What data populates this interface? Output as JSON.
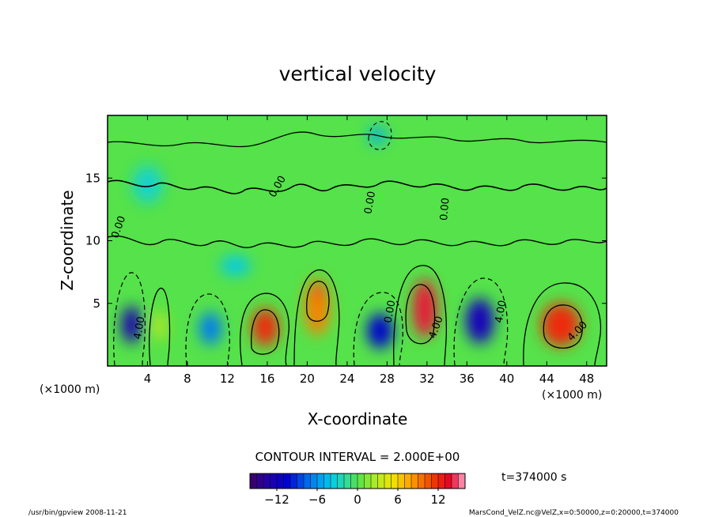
{
  "chart_data": {
    "type": "heatmap",
    "title": "vertical velocity",
    "xlabel": "X-coordinate",
    "ylabel": "Z-coordinate",
    "x_unit": "(×1000 m)",
    "x_ticks": [
      4,
      8,
      12,
      16,
      20,
      24,
      28,
      32,
      36,
      40,
      44,
      48
    ],
    "y_ticks": [
      5,
      10,
      15
    ],
    "xlim": [
      0,
      50
    ],
    "ylim": [
      0,
      20
    ],
    "contour_interval_text": "CONTOUR INTERVAL = 2.000E+00",
    "time_label": "t=374000 s",
    "colorbar": {
      "range": [
        -16,
        16
      ],
      "ticks": [
        -12,
        -6,
        0,
        6,
        12
      ],
      "tick_labels": [
        "−12",
        "−6",
        "0",
        "6",
        "12"
      ]
    },
    "contour_labels": [
      {
        "text": "0.00",
        "x": 17.3,
        "z": 14.2,
        "rotate": -60
      },
      {
        "text": "0.00",
        "x": 1.4,
        "z": 11.0,
        "rotate": -70
      },
      {
        "text": "0.00",
        "x": 26.6,
        "z": 13.0,
        "rotate": -80
      },
      {
        "text": "0.00",
        "x": 34.1,
        "z": 12.5,
        "rotate": -85
      },
      {
        "text": "0.00",
        "x": 28.6,
        "z": 4.3,
        "rotate": -80
      },
      {
        "text": "4.00",
        "x": 3.5,
        "z": 3.0,
        "rotate": -80
      },
      {
        "text": "4.00",
        "x": 33.2,
        "z": 3.0,
        "rotate": -70
      },
      {
        "text": "4.00",
        "x": 39.7,
        "z": 4.3,
        "rotate": -80
      },
      {
        "text": "4.00",
        "x": 47.3,
        "z": 2.6,
        "rotate": -45
      }
    ],
    "cells": [
      {
        "x": 2.6,
        "z": 3.0,
        "w": 0.9,
        "hz": 2.0,
        "value": -16
      },
      {
        "x": 2.4,
        "z": 3.3,
        "w": 2.0,
        "hz": 3.0,
        "value": -13
      },
      {
        "x": 5.2,
        "z": 3.2,
        "w": 1.1,
        "hz": 2.4,
        "value": 4
      },
      {
        "x": 10.3,
        "z": 3.0,
        "w": 2.2,
        "hz": 2.6,
        "value": -7
      },
      {
        "x": 15.8,
        "z": 3.1,
        "w": 2.7,
        "hz": 3.0,
        "value": 12
      },
      {
        "x": 21.0,
        "z": 4.7,
        "w": 2.5,
        "hz": 4.5,
        "value": 9
      },
      {
        "x": 21.1,
        "z": 6.0,
        "w": 0.9,
        "hz": 1.2,
        "value": 13
      },
      {
        "x": 27.3,
        "z": 2.8,
        "w": 2.6,
        "hz": 2.8,
        "value": -11
      },
      {
        "x": 31.8,
        "z": 4.6,
        "w": 2.4,
        "hz": 4.6,
        "value": 14
      },
      {
        "x": 37.3,
        "z": 3.6,
        "w": 2.8,
        "hz": 3.6,
        "value": -12
      },
      {
        "x": 45.4,
        "z": 3.3,
        "w": 3.9,
        "hz": 3.5,
        "value": 12
      },
      {
        "x": 27.0,
        "z": 18.4,
        "w": 1.8,
        "hz": 1.4,
        "value": -5
      },
      {
        "x": 12.8,
        "z": 8.0,
        "w": 3.0,
        "hz": 1.5,
        "value": -4
      },
      {
        "x": 4.0,
        "z": 14.5,
        "w": 3.0,
        "hz": 3.0,
        "value": -3
      }
    ]
  },
  "footer": {
    "left": "/usr/bin/gpview  2008-11-21",
    "right": "MarsCond_VelZ.nc@VelZ,x=0:50000,z=0:20000,t=374000"
  }
}
